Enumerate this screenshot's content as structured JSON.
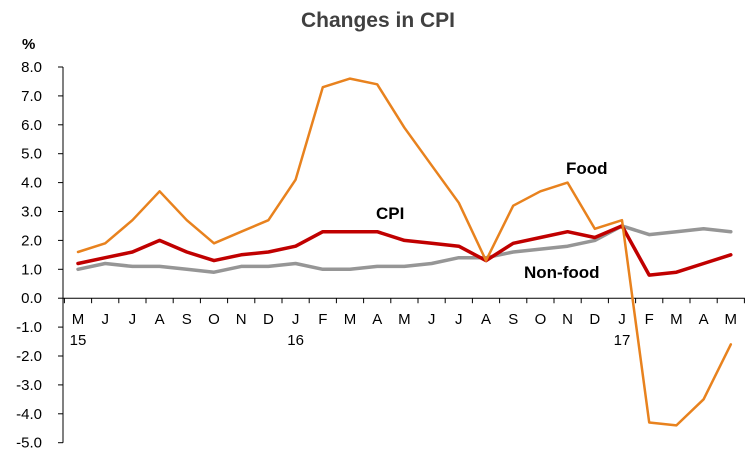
{
  "chart_data": {
    "type": "line",
    "title": "Changes in CPI",
    "ylabel": "%",
    "xlabel": "",
    "ylim": [
      -5.0,
      8.0
    ],
    "y_ticks": [
      "8.0",
      "7.0",
      "6.0",
      "5.0",
      "4.0",
      "3.0",
      "2.0",
      "1.0",
      "0.0",
      "-1.0",
      "-2.0",
      "-3.0",
      "-4.0",
      "-5.0"
    ],
    "y_tick_values": [
      8,
      7,
      6,
      5,
      4,
      3,
      2,
      1,
      0,
      -1,
      -2,
      -3,
      -4,
      -5
    ],
    "categories": [
      "M",
      "J",
      "J",
      "A",
      "S",
      "O",
      "N",
      "D",
      "J",
      "F",
      "M",
      "A",
      "M",
      "J",
      "J",
      "A",
      "S",
      "O",
      "N",
      "D",
      "J",
      "F",
      "M",
      "A",
      "M"
    ],
    "year_labels": [
      {
        "index": 0,
        "label": "15"
      },
      {
        "index": 8,
        "label": "16"
      },
      {
        "index": 20,
        "label": "17"
      }
    ],
    "grid": false,
    "series": [
      {
        "name": "Food",
        "color": "#E8821E",
        "values": [
          1.6,
          1.9,
          2.7,
          3.7,
          2.7,
          1.9,
          2.3,
          2.7,
          4.1,
          7.3,
          7.6,
          7.4,
          5.9,
          4.6,
          3.3,
          1.3,
          3.2,
          3.7,
          4.0,
          2.4,
          2.7,
          -4.3,
          -4.4,
          -3.5,
          -1.6
        ]
      },
      {
        "name": "CPI",
        "color": "#C00000",
        "values": [
          1.2,
          1.4,
          1.6,
          2.0,
          1.6,
          1.3,
          1.5,
          1.6,
          1.8,
          2.3,
          2.3,
          2.3,
          2.0,
          1.9,
          1.8,
          1.3,
          1.9,
          2.1,
          2.3,
          2.1,
          2.5,
          0.8,
          0.9,
          1.2,
          1.5
        ]
      },
      {
        "name": "Non-food",
        "color": "#969696",
        "values": [
          1.0,
          1.2,
          1.1,
          1.1,
          1.0,
          0.9,
          1.1,
          1.1,
          1.2,
          1.0,
          1.0,
          1.1,
          1.1,
          1.2,
          1.4,
          1.4,
          1.6,
          1.7,
          1.8,
          2.0,
          2.5,
          2.2,
          2.3,
          2.4,
          2.3
        ]
      }
    ]
  }
}
